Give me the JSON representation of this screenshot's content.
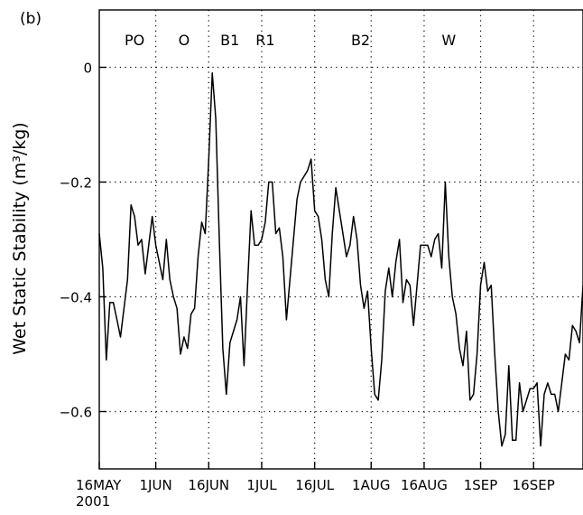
{
  "panel_label": "(b)",
  "chart_data": {
    "type": "line",
    "title": "",
    "xlabel": "",
    "ylabel": "Wet Static Stability (m³/kg)",
    "x_start": "2001-05-16",
    "x_end": "2001-09-30",
    "ylim": [
      -0.7,
      0.1
    ],
    "yticks": [
      {
        "value": 0,
        "label": "0"
      },
      {
        "value": -0.2,
        "label": "−0.2"
      },
      {
        "value": -0.4,
        "label": "−0.4"
      },
      {
        "value": -0.6,
        "label": "−0.6"
      }
    ],
    "xticks": [
      {
        "date": "2001-05-16",
        "label": "16MAY",
        "sublabel": "2001"
      },
      {
        "date": "2001-06-01",
        "label": "1JUN"
      },
      {
        "date": "2001-06-16",
        "label": "16JUN"
      },
      {
        "date": "2001-07-01",
        "label": "1JUL"
      },
      {
        "date": "2001-07-16",
        "label": "16JUL"
      },
      {
        "date": "2001-08-01",
        "label": "1AUG"
      },
      {
        "date": "2001-08-16",
        "label": "16AUG"
      },
      {
        "date": "2001-09-01",
        "label": "1SEP"
      },
      {
        "date": "2001-09-16",
        "label": "16SEP"
      }
    ],
    "grid": "dotted",
    "annotations": [
      {
        "label": "PO",
        "date": "2001-05-26"
      },
      {
        "label": "O",
        "date": "2001-06-09"
      },
      {
        "label": "B1",
        "date": "2001-06-22"
      },
      {
        "label": "R1",
        "date": "2001-07-02"
      },
      {
        "label": "B2",
        "date": "2001-07-29"
      },
      {
        "label": "W",
        "date": "2001-08-23"
      }
    ],
    "series": [
      {
        "x": [
          "2001-05-16",
          "2001-05-17",
          "2001-05-18",
          "2001-05-19",
          "2001-05-20",
          "2001-05-21",
          "2001-05-22",
          "2001-05-23",
          "2001-05-24",
          "2001-05-25",
          "2001-05-26",
          "2001-05-27",
          "2001-05-28",
          "2001-05-29",
          "2001-05-30",
          "2001-05-31",
          "2001-06-01",
          "2001-06-02",
          "2001-06-03",
          "2001-06-04",
          "2001-06-05",
          "2001-06-06",
          "2001-06-07",
          "2001-06-08",
          "2001-06-09",
          "2001-06-10",
          "2001-06-11",
          "2001-06-12",
          "2001-06-13",
          "2001-06-14",
          "2001-06-15",
          "2001-06-16",
          "2001-06-17",
          "2001-06-18",
          "2001-06-19",
          "2001-06-20",
          "2001-06-21",
          "2001-06-22",
          "2001-06-23",
          "2001-06-24",
          "2001-06-25",
          "2001-06-26",
          "2001-06-27",
          "2001-06-28",
          "2001-06-29",
          "2001-06-30",
          "2001-07-01",
          "2001-07-02",
          "2001-07-03",
          "2001-07-04",
          "2001-07-05",
          "2001-07-06",
          "2001-07-07",
          "2001-07-08",
          "2001-07-09",
          "2001-07-10",
          "2001-07-11",
          "2001-07-12",
          "2001-07-13",
          "2001-07-14",
          "2001-07-15",
          "2001-07-16",
          "2001-07-17",
          "2001-07-18",
          "2001-07-19",
          "2001-07-20",
          "2001-07-21",
          "2001-07-22",
          "2001-07-23",
          "2001-07-24",
          "2001-07-25",
          "2001-07-26",
          "2001-07-27",
          "2001-07-28",
          "2001-07-29",
          "2001-07-30",
          "2001-07-31",
          "2001-08-01",
          "2001-08-02",
          "2001-08-03",
          "2001-08-04",
          "2001-08-05",
          "2001-08-06",
          "2001-08-07",
          "2001-08-08",
          "2001-08-09",
          "2001-08-10",
          "2001-08-11",
          "2001-08-12",
          "2001-08-13",
          "2001-08-14",
          "2001-08-15",
          "2001-08-16",
          "2001-08-17",
          "2001-08-18",
          "2001-08-19",
          "2001-08-20",
          "2001-08-21",
          "2001-08-22",
          "2001-08-23",
          "2001-08-24",
          "2001-08-25",
          "2001-08-26",
          "2001-08-27",
          "2001-08-28",
          "2001-08-29",
          "2001-08-30",
          "2001-08-31",
          "2001-09-01",
          "2001-09-02",
          "2001-09-03",
          "2001-09-04",
          "2001-09-05",
          "2001-09-06",
          "2001-09-07",
          "2001-09-08",
          "2001-09-09",
          "2001-09-10",
          "2001-09-11",
          "2001-09-12",
          "2001-09-13",
          "2001-09-14",
          "2001-09-15",
          "2001-09-16",
          "2001-09-17",
          "2001-09-18",
          "2001-09-19",
          "2001-09-20",
          "2001-09-21",
          "2001-09-22",
          "2001-09-23",
          "2001-09-24",
          "2001-09-25",
          "2001-09-26",
          "2001-09-27",
          "2001-09-28",
          "2001-09-29",
          "2001-09-30"
        ],
        "y": [
          -0.29,
          -0.35,
          -0.51,
          -0.41,
          -0.41,
          -0.44,
          -0.47,
          -0.42,
          -0.37,
          -0.24,
          -0.26,
          -0.31,
          -0.3,
          -0.36,
          -0.31,
          -0.26,
          -0.31,
          -0.34,
          -0.37,
          -0.3,
          -0.37,
          -0.4,
          -0.42,
          -0.5,
          -0.47,
          -0.49,
          -0.43,
          -0.42,
          -0.33,
          -0.27,
          -0.29,
          -0.16,
          -0.01,
          -0.09,
          -0.3,
          -0.49,
          -0.57,
          -0.48,
          -0.46,
          -0.44,
          -0.4,
          -0.52,
          -0.38,
          -0.25,
          -0.31,
          -0.31,
          -0.3,
          -0.27,
          -0.2,
          -0.2,
          -0.29,
          -0.28,
          -0.33,
          -0.44,
          -0.37,
          -0.3,
          -0.23,
          -0.2,
          -0.19,
          -0.18,
          -0.16,
          -0.25,
          -0.26,
          -0.3,
          -0.37,
          -0.4,
          -0.29,
          -0.21,
          -0.25,
          -0.29,
          -0.33,
          -0.31,
          -0.26,
          -0.3,
          -0.38,
          -0.42,
          -0.39,
          -0.49,
          -0.57,
          -0.58,
          -0.51,
          -0.39,
          -0.35,
          -0.4,
          -0.34,
          -0.3,
          -0.41,
          -0.37,
          -0.38,
          -0.45,
          -0.38,
          -0.31,
          -0.31,
          -0.31,
          -0.33,
          -0.3,
          -0.29,
          -0.35,
          -0.2,
          -0.33,
          -0.4,
          -0.43,
          -0.49,
          -0.52,
          -0.46,
          -0.58,
          -0.57,
          -0.5,
          -0.38,
          -0.34,
          -0.39,
          -0.38,
          -0.5,
          -0.6,
          -0.66,
          -0.64,
          -0.52,
          -0.65,
          -0.65,
          -0.55,
          -0.6,
          -0.58,
          -0.56,
          -0.56,
          -0.55,
          -0.66,
          -0.57,
          -0.55,
          -0.57,
          -0.57,
          -0.6,
          -0.55,
          -0.5,
          -0.51,
          -0.45,
          -0.46,
          -0.48,
          -0.38
        ]
      }
    ]
  }
}
